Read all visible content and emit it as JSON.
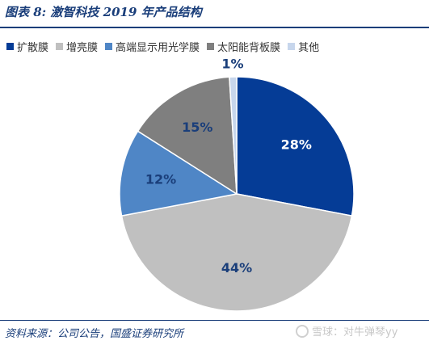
{
  "figure_title": "图表 8:  激智科技 2019 年产品结构",
  "source_note": "资料来源：公司公告，国盛证券研究所",
  "watermark": "雪球：对牛弹琴yy",
  "chart_data": {
    "type": "pie",
    "title": "",
    "legend_position": "top",
    "start_angle_deg": 0,
    "direction": "clockwise",
    "slices": [
      {
        "name": "扩散膜",
        "value": 28,
        "label": "28%",
        "color": "#053c96",
        "label_color": "#ffffff"
      },
      {
        "name": "增亮膜",
        "value": 44,
        "label": "44%",
        "color": "#c0c0c0",
        "label_color": "#1a3e7a"
      },
      {
        "name": "高端显示用光学膜",
        "value": 12,
        "label": "12%",
        "color": "#4f86c6",
        "label_color": "#1a3e7a"
      },
      {
        "name": "太阳能背板膜",
        "value": 15,
        "label": "15%",
        "color": "#7f7f7f",
        "label_color": "#1a3e7a"
      },
      {
        "name": "其他",
        "value": 1,
        "label": "1%",
        "color": "#c7d6ec",
        "label_color": "#1a3e7a"
      }
    ]
  }
}
